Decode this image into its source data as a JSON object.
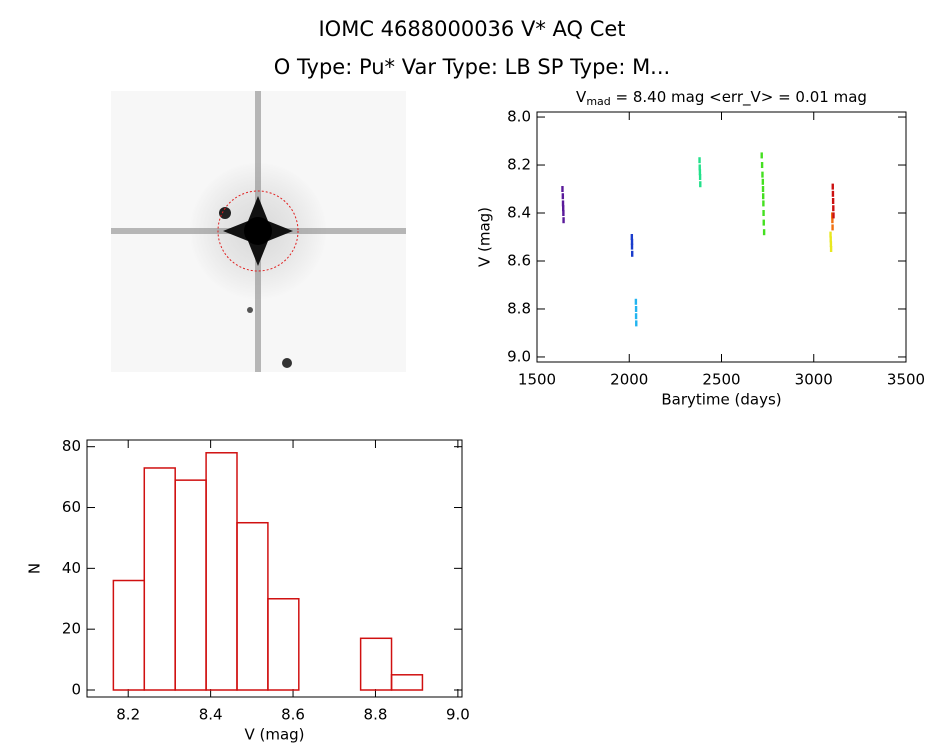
{
  "header": {
    "title": "IOMC 4688000036   V* AQ Cet",
    "subtitle": "O Type: Pu*  Var Type: LB  SP Type: M..."
  },
  "chart_data": [
    {
      "type": "scatter",
      "title": "V",
      "title_sub": "mad",
      "title_rest": " = 8.40 mag <err_V> = 0.01 mag",
      "x_label": "Barytime (days)",
      "y_label": "V (mag)",
      "xlim": [
        1500,
        3500
      ],
      "xticks": [
        1500,
        2000,
        2500,
        3000,
        3500
      ],
      "ylim": [
        9.021,
        7.979
      ],
      "yticks": [
        {
          "value": 8,
          "label": "8.0"
        },
        8.2,
        8.4,
        8.6,
        8.8,
        {
          "value": 9,
          "label": "9.0"
        }
      ],
      "series": [
        {
          "color": "#5a1a9a",
          "x": [
            1638,
            1640,
            1641,
            1642,
            1643,
            1644
          ],
          "values": [
            8.3,
            8.33,
            8.36,
            8.38,
            8.4,
            8.43
          ]
        },
        {
          "color": "#1a3ccc",
          "x": [
            2014,
            2015,
            2015,
            2016
          ],
          "values": [
            8.5,
            8.52,
            8.54,
            8.57
          ]
        },
        {
          "color": "#22b4f0",
          "x": [
            2036,
            2037,
            2037,
            2038
          ],
          "values": [
            8.77,
            8.8,
            8.83,
            8.86
          ]
        },
        {
          "color": "#22e08a",
          "x": [
            2381,
            2382,
            2383,
            2384,
            2385
          ],
          "values": [
            8.18,
            8.21,
            8.23,
            8.25,
            8.28
          ]
        },
        {
          "color": "#44e020",
          "x": [
            2718,
            2720,
            2722,
            2724,
            2725,
            2726,
            2727,
            2728,
            2729,
            2731
          ],
          "values": [
            8.16,
            8.2,
            8.24,
            8.27,
            8.3,
            8.33,
            8.36,
            8.4,
            8.44,
            8.48
          ]
        },
        {
          "color": "#e8e820",
          "x": [
            3091,
            3092,
            3093,
            3094
          ],
          "values": [
            8.49,
            8.51,
            8.53,
            8.55
          ]
        },
        {
          "color": "#f07010",
          "x": [
            3100,
            3101,
            3102
          ],
          "values": [
            8.41,
            8.43,
            8.46
          ]
        },
        {
          "color": "#cc1010",
          "x": [
            3103,
            3104,
            3105,
            3106,
            3107
          ],
          "values": [
            8.29,
            8.32,
            8.35,
            8.38,
            8.41
          ]
        }
      ]
    },
    {
      "type": "histogram",
      "x_label": "V (mag)",
      "y_label": "N",
      "color": "#d01010",
      "bins": [
        8.164,
        8.239,
        8.314,
        8.389,
        8.464,
        8.539,
        8.614,
        8.689,
        8.764,
        8.839,
        8.914
      ],
      "values": [
        36,
        73,
        69,
        78,
        55,
        30,
        0,
        0,
        17,
        5
      ],
      "xlim": [
        8.1,
        9.01
      ],
      "xticks": [
        8.2,
        8.4,
        8.6,
        8.8,
        {
          "value": 9,
          "label": "9.0"
        }
      ],
      "ylim": [
        -2.3,
        82.2
      ],
      "yticks": [
        0,
        20,
        40,
        60,
        80
      ]
    }
  ]
}
